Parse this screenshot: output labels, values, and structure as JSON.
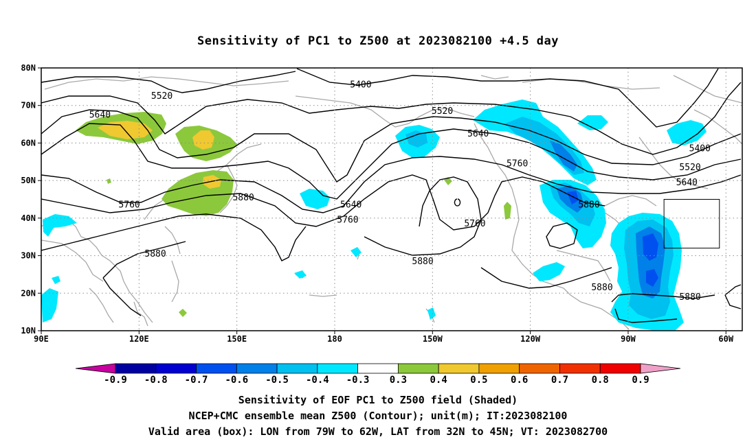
{
  "title": "Sensitivity of PC1 to Z500 at 2023082100 +4.5 day",
  "map": {
    "lat_labels": [
      "80N",
      "70N",
      "60N",
      "50N",
      "40N",
      "30N",
      "20N",
      "10N"
    ],
    "lon_labels": [
      "90E",
      "120E",
      "150E",
      "180",
      "150W",
      "120W",
      "90W",
      "60W"
    ],
    "contour_labels": [
      {
        "text": "5520",
        "lon": 127,
        "lat": 72.5
      },
      {
        "text": "5640",
        "lon": 108,
        "lat": 67.5
      },
      {
        "text": "5400",
        "lon": -172,
        "lat": 75.5
      },
      {
        "text": "5520",
        "lon": -147,
        "lat": 68.5
      },
      {
        "text": "5640",
        "lon": -136,
        "lat": 62.5
      },
      {
        "text": "5760",
        "lon": -124,
        "lat": 54.5
      },
      {
        "text": "5880",
        "lon": -102,
        "lat": 43.5
      },
      {
        "text": "5400",
        "lon": -68,
        "lat": 58.5
      },
      {
        "text": "5520",
        "lon": -71,
        "lat": 53.5
      },
      {
        "text": "5640",
        "lon": -72,
        "lat": 49.5
      },
      {
        "text": "5760",
        "lon": 117,
        "lat": 43.5
      },
      {
        "text": "5880",
        "lon": 152,
        "lat": 45.5
      },
      {
        "text": "5640",
        "lon": -175,
        "lat": 43.5
      },
      {
        "text": "5760",
        "lon": -176,
        "lat": 39.5
      },
      {
        "text": "5760",
        "lon": -137,
        "lat": 38.5
      },
      {
        "text": "5880",
        "lon": -153,
        "lat": 28.5
      },
      {
        "text": "5880",
        "lon": 125,
        "lat": 30.5
      },
      {
        "text": "5880",
        "lon": -98,
        "lat": 21.5
      },
      {
        "text": "5880",
        "lon": -71,
        "lat": 19.0
      }
    ],
    "valid_box": {
      "lon_min": -79,
      "lon_max": -62,
      "lat_min": 32,
      "lat_max": 45
    }
  },
  "colorbar": {
    "colors": [
      "#c800a0",
      "#0000a0",
      "#0000d0",
      "#0050f0",
      "#0080e8",
      "#00c0f0",
      "#00e8ff",
      "#ffffff",
      "#8cc83c",
      "#f0c830",
      "#f0a000",
      "#f06400",
      "#f03000",
      "#f00000",
      "#f0a0c8"
    ],
    "ticks": [
      "-0.9",
      "-0.8",
      "-0.7",
      "-0.6",
      "-0.5",
      "-0.4",
      "-0.3",
      "0.3",
      "0.4",
      "0.5",
      "0.6",
      "0.7",
      "0.8",
      "0.9"
    ]
  },
  "footer": {
    "line1": "Sensitivity of EOF PC1 to Z500 field (Shaded)",
    "line2": "NCEP+CMC ensemble mean Z500 (Contour); unit(m); IT:2023082100",
    "line3": "Valid area (box): LON from 79W to 62W, LAT from 32N to 45N; VT: 2023082700"
  }
}
